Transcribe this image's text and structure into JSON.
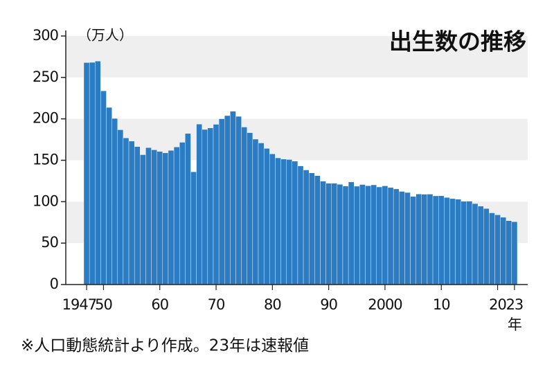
{
  "chart_data": {
    "type": "bar",
    "title": "出生数の推移",
    "y_unit": "（万人）",
    "x_unit": "年",
    "note": "※人口動態統計より作成。23年は速報値",
    "color": "#2b7cc3",
    "band_color": "#efefef",
    "ylim": [
      0,
      300
    ],
    "yticks": [
      0,
      50,
      100,
      150,
      200,
      250,
      300
    ],
    "categories": [
      "1947",
      null,
      null,
      "50",
      null,
      null,
      null,
      null,
      null,
      null,
      null,
      null,
      null,
      "60",
      null,
      null,
      null,
      null,
      null,
      null,
      null,
      null,
      null,
      "70",
      null,
      null,
      null,
      null,
      null,
      null,
      null,
      null,
      null,
      "80",
      null,
      null,
      null,
      null,
      null,
      null,
      null,
      null,
      null,
      "90",
      null,
      null,
      null,
      null,
      null,
      null,
      null,
      null,
      null,
      "2000",
      null,
      null,
      null,
      null,
      null,
      null,
      null,
      null,
      null,
      "10",
      null,
      null,
      null,
      null,
      null,
      null,
      null,
      null,
      null,
      "20",
      null,
      null,
      "23"
    ],
    "values": [
      267.9,
      268.2,
      269.7,
      233.8,
      213.8,
      200.5,
      186.8,
      177.0,
      173.1,
      166.5,
      156.7,
      165.3,
      162.6,
      160.6,
      158.9,
      161.9,
      166.0,
      171.7,
      182.4,
      136.1,
      193.6,
      187.2,
      189.0,
      193.4,
      200.1,
      203.9,
      209.2,
      203.0,
      190.1,
      183.3,
      175.5,
      170.9,
      164.3,
      157.7,
      152.9,
      151.5,
      150.9,
      149.0,
      143.2,
      138.3,
      134.7,
      131.4,
      124.7,
      122.2,
      122.3,
      120.9,
      118.8,
      123.8,
      118.7,
      120.7,
      119.2,
      120.3,
      117.8,
      119.1,
      117.1,
      115.4,
      112.4,
      111.1,
      106.3,
      109.3,
      109.0,
      109.1,
      107.0,
      107.1,
      105.1,
      103.7,
      103.0,
      100.4,
      100.6,
      97.7,
      94.6,
      91.8,
      86.5,
      84.1,
      81.2,
      77.1,
      75.8
    ]
  }
}
